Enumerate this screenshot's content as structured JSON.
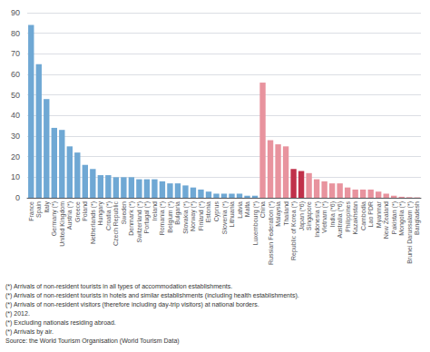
{
  "chart_data": {
    "type": "bar",
    "categories": [
      "France",
      "Spain",
      "Italy",
      "Germany (*)",
      "United Kingdom",
      "Austria (*)",
      "Greece",
      "Poland",
      "Netherlands (*)",
      "Hungary",
      "Croatia (*)",
      "Czech Republic",
      "Sweden",
      "Denmark (*)",
      "Switzerland (*)",
      "Portugal (*)",
      "Ireland",
      "Romania (*)",
      "Belgium (*)",
      "Bulgaria",
      "Slovakia (*)",
      "Norway (*)",
      "Finland (*)",
      "Estonia",
      "Cyprus",
      "Slovenia (*)",
      "Lithuania",
      "Latvia",
      "Malta",
      "Luxembourg (*)",
      "China",
      "Russian Federation (*)",
      "Malaysia",
      "Thailand",
      "Republic of Korea (*)",
      "Japan (*6)",
      "Singapore",
      "Indonesia (*)",
      "Vietnam (*)",
      "India (*6)",
      "Australia (*6)",
      "Philippines",
      "Kazakhstan",
      "Cambodia",
      "Lao PDR",
      "Myanmar",
      "New Zealand",
      "Pakistan (*)",
      "Mongolia (*)",
      "Brunei Darussalam (*)",
      "Bangladesh"
    ],
    "values": [
      84,
      65,
      48,
      34,
      33,
      25,
      22,
      16,
      14,
      11,
      11,
      10,
      10,
      10,
      9,
      9,
      9,
      8,
      7,
      7,
      6,
      5,
      4,
      3,
      2,
      2,
      2,
      2,
      1,
      1,
      56,
      28,
      26,
      25,
      14,
      13,
      12,
      9,
      8,
      7,
      7,
      5,
      4,
      4,
      4,
      3,
      2,
      1,
      0.5,
      0.3,
      0.2
    ],
    "colors": [
      "#6fa8d4",
      "#6fa8d4",
      "#6fa8d4",
      "#6fa8d4",
      "#6fa8d4",
      "#6fa8d4",
      "#6fa8d4",
      "#6fa8d4",
      "#6fa8d4",
      "#6fa8d4",
      "#6fa8d4",
      "#6fa8d4",
      "#6fa8d4",
      "#6fa8d4",
      "#6fa8d4",
      "#6fa8d4",
      "#6fa8d4",
      "#6fa8d4",
      "#6fa8d4",
      "#6fa8d4",
      "#6fa8d4",
      "#6fa8d4",
      "#6fa8d4",
      "#6fa8d4",
      "#6fa8d4",
      "#6fa8d4",
      "#6fa8d4",
      "#6fa8d4",
      "#6fa8d4",
      "#6fa8d4",
      "#e8939e",
      "#e8939e",
      "#e8939e",
      "#e8939e",
      "#c0304a",
      "#c0304a",
      "#e8939e",
      "#e8939e",
      "#e8939e",
      "#e8939e",
      "#e8939e",
      "#e8939e",
      "#e8939e",
      "#e8939e",
      "#e8939e",
      "#e8939e",
      "#e8939e",
      "#e8939e",
      "#e8939e",
      "#e8939e",
      "#e8939e"
    ],
    "ylim": [
      0,
      90
    ],
    "yticks": [
      0,
      10,
      20,
      30,
      40,
      50,
      60,
      70,
      80,
      90
    ],
    "grid": true,
    "annotations": [
      "(*) Arrivals of non-resident tourists in all types of accommodation establishments.",
      "(*) Arrivals of non-resident tourists in hotels and similar establishments (including health establishments).",
      "(*) Arrivals of non-resident visitors (therefore including day-trip visitors) at national borders.",
      "(*) 2012.",
      "(*) Excluding nationals residing abroad.",
      "(*) Arrivals by air.",
      "Source: the World Tourism Organisation (World Tourism Data)"
    ]
  }
}
